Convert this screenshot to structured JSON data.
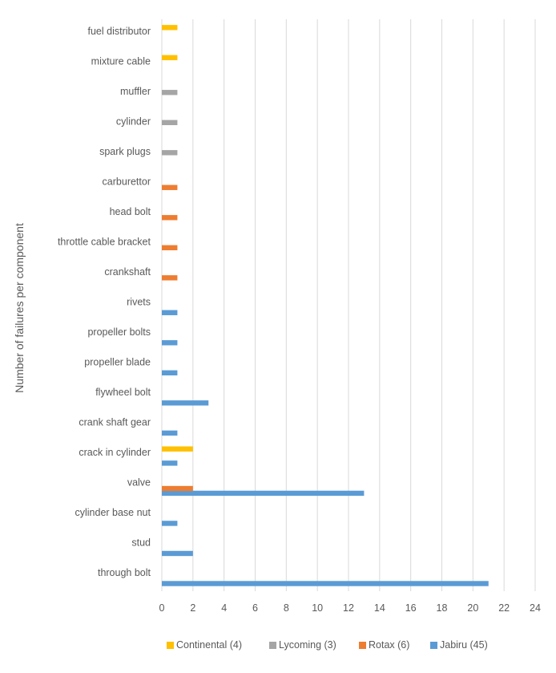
{
  "chart_data": {
    "type": "bar",
    "orientation": "horizontal",
    "title": "",
    "xlabel": "",
    "ylabel": "Number of failures per component",
    "xlim": [
      0,
      24
    ],
    "x_ticks": [
      0,
      2,
      4,
      6,
      8,
      10,
      12,
      14,
      16,
      18,
      20,
      22,
      24
    ],
    "grid": true,
    "legend_position": "bottom",
    "categories": [
      "through bolt",
      "stud",
      "cylinder base nut",
      "valve",
      "crack in cylinder",
      "crank shaft gear",
      "flywheel bolt",
      "propeller blade",
      "propeller bolts",
      "rivets",
      "crankshaft",
      "throttle cable bracket",
      "head bolt",
      "carburettor",
      "spark plugs",
      "cylinder",
      "muffler",
      "mixture cable",
      "fuel distributor"
    ],
    "series": [
      {
        "name": "Jabiru (45)",
        "color": "#5b9bd5",
        "values": [
          21,
          2,
          1,
          13,
          1,
          1,
          3,
          1,
          1,
          1,
          0,
          0,
          0,
          0,
          0,
          0,
          0,
          0,
          0
        ]
      },
      {
        "name": "Rotax (6)",
        "color": "#ed7d31",
        "values": [
          0,
          0,
          0,
          2,
          0,
          0,
          0,
          0,
          0,
          0,
          1,
          1,
          1,
          1,
          0,
          0,
          0,
          0,
          0
        ]
      },
      {
        "name": "Lycoming (3)",
        "color": "#a5a5a5",
        "values": [
          0,
          0,
          0,
          0,
          0,
          0,
          0,
          0,
          0,
          0,
          0,
          0,
          0,
          0,
          1,
          1,
          1,
          0,
          0
        ]
      },
      {
        "name": "Continental (4)",
        "color": "#ffc000",
        "values": [
          0,
          0,
          0,
          0,
          2,
          0,
          0,
          0,
          0,
          0,
          0,
          0,
          0,
          0,
          0,
          0,
          0,
          1,
          1
        ]
      }
    ],
    "legend_order": [
      "Continental (4)",
      "Lycoming (3)",
      "Rotax (6)",
      "Jabiru (45)"
    ],
    "gridline_color": "#d9d9d9"
  }
}
